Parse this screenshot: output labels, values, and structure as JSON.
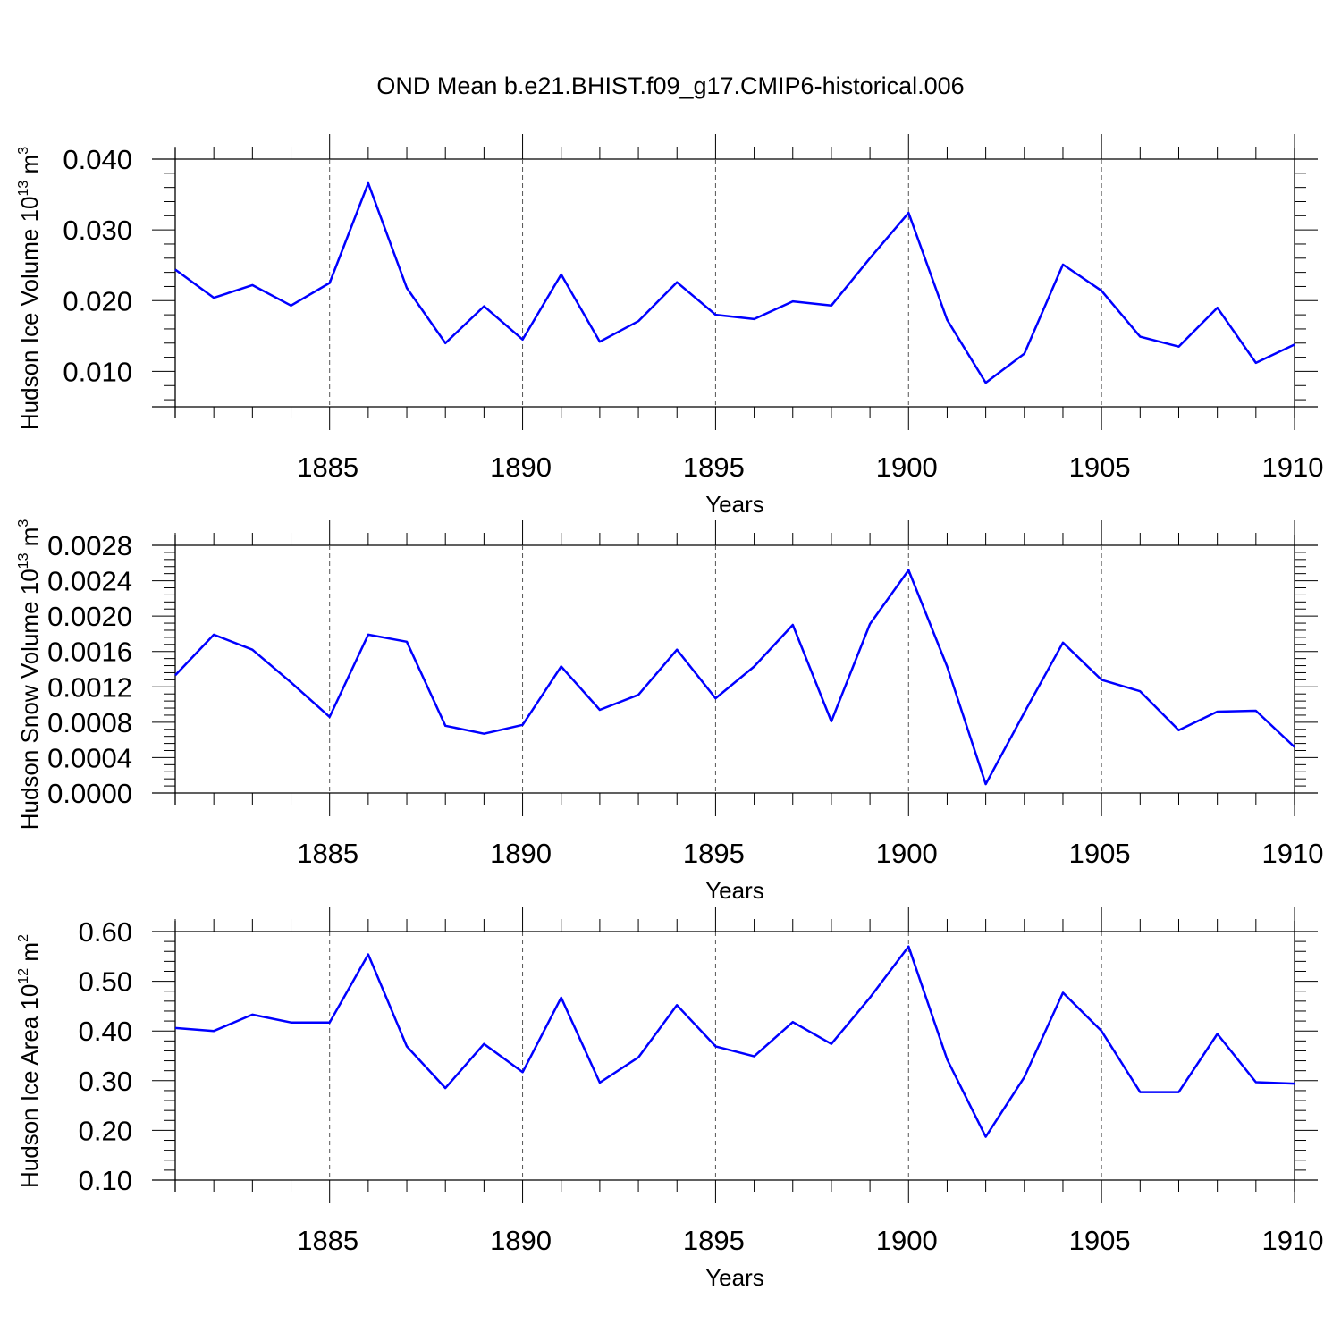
{
  "title": "OND Mean b.e21.BHIST.f09_g17.CMIP6-historical.006",
  "colors": {
    "series": "#0000ff",
    "axis": "#000000",
    "grid": "#555555"
  },
  "chart_data": [
    {
      "type": "line",
      "xlabel": "Years",
      "ylabel": {
        "main": "Hudson Ice Volume 10",
        "exponent": "13",
        "unit": " m",
        "unit_exponent": "3"
      },
      "xlim": [
        1881,
        1910
      ],
      "ylim": [
        0.005,
        0.04
      ],
      "xticks": [
        1885,
        1890,
        1895,
        1900,
        1905,
        1910
      ],
      "yticks": [
        0.01,
        0.02,
        0.03,
        0.04
      ],
      "ytick_labels": [
        "0.010",
        "0.020",
        "0.030",
        "0.040"
      ],
      "x": [
        1881,
        1882,
        1883,
        1884,
        1885,
        1886,
        1887,
        1888,
        1889,
        1890,
        1891,
        1892,
        1893,
        1894,
        1895,
        1896,
        1897,
        1898,
        1899,
        1900,
        1901,
        1902,
        1903,
        1904,
        1905,
        1906,
        1907,
        1908,
        1909,
        1910
      ],
      "values": [
        0.0244,
        0.0204,
        0.0222,
        0.0193,
        0.0225,
        0.0366,
        0.0218,
        0.014,
        0.0192,
        0.0145,
        0.0237,
        0.0142,
        0.0171,
        0.0226,
        0.018,
        0.0174,
        0.0199,
        0.0193,
        0.026,
        0.0324,
        0.0173,
        0.0084,
        0.0125,
        0.0251,
        0.0214,
        0.0149,
        0.0135,
        0.019,
        0.0112,
        0.0138
      ]
    },
    {
      "type": "line",
      "xlabel": "Years",
      "ylabel": {
        "main": "Hudson Snow Volume 10",
        "exponent": "13",
        "unit": " m",
        "unit_exponent": "3"
      },
      "xlim": [
        1881,
        1910
      ],
      "ylim": [
        0.0,
        0.0028
      ],
      "xticks": [
        1885,
        1890,
        1895,
        1900,
        1905,
        1910
      ],
      "yticks": [
        0.0,
        0.0004,
        0.0008,
        0.0012,
        0.0016,
        0.002,
        0.0024,
        0.0028
      ],
      "ytick_labels": [
        "0.0000",
        "0.0004",
        "0.0008",
        "0.0012",
        "0.0016",
        "0.0020",
        "0.0024",
        "0.0028"
      ],
      "x": [
        1881,
        1882,
        1883,
        1884,
        1885,
        1886,
        1887,
        1888,
        1889,
        1890,
        1891,
        1892,
        1893,
        1894,
        1895,
        1896,
        1897,
        1898,
        1899,
        1900,
        1901,
        1902,
        1903,
        1904,
        1905,
        1906,
        1907,
        1908,
        1909,
        1910
      ],
      "values": [
        0.00133,
        0.00179,
        0.00162,
        0.00125,
        0.00086,
        0.00179,
        0.00171,
        0.00076,
        0.00067,
        0.00077,
        0.00143,
        0.00094,
        0.00111,
        0.00162,
        0.00107,
        0.00143,
        0.0019,
        0.00081,
        0.00191,
        0.00252,
        0.00143,
        0.0001,
        0.00091,
        0.0017,
        0.00128,
        0.00115,
        0.00071,
        0.00092,
        0.00093,
        0.00052
      ]
    },
    {
      "type": "line",
      "xlabel": "Years",
      "ylabel": {
        "main": "Hudson Ice Area 10",
        "exponent": "12",
        "unit": " m",
        "unit_exponent": "2"
      },
      "xlim": [
        1881,
        1910
      ],
      "ylim": [
        0.1,
        0.6
      ],
      "xticks": [
        1885,
        1890,
        1895,
        1900,
        1905,
        1910
      ],
      "yticks": [
        0.1,
        0.2,
        0.3,
        0.4,
        0.5,
        0.6
      ],
      "ytick_labels": [
        "0.10",
        "0.20",
        "0.30",
        "0.40",
        "0.50",
        "0.60"
      ],
      "x": [
        1881,
        1882,
        1883,
        1884,
        1885,
        1886,
        1887,
        1888,
        1889,
        1890,
        1891,
        1892,
        1893,
        1894,
        1895,
        1896,
        1897,
        1898,
        1899,
        1900,
        1901,
        1902,
        1903,
        1904,
        1905,
        1906,
        1907,
        1908,
        1909,
        1910
      ],
      "values": [
        0.406,
        0.4,
        0.433,
        0.417,
        0.417,
        0.554,
        0.369,
        0.285,
        0.374,
        0.317,
        0.467,
        0.296,
        0.347,
        0.452,
        0.369,
        0.349,
        0.418,
        0.374,
        0.467,
        0.57,
        0.343,
        0.187,
        0.307,
        0.477,
        0.4,
        0.277,
        0.277,
        0.394,
        0.297,
        0.294
      ]
    }
  ]
}
